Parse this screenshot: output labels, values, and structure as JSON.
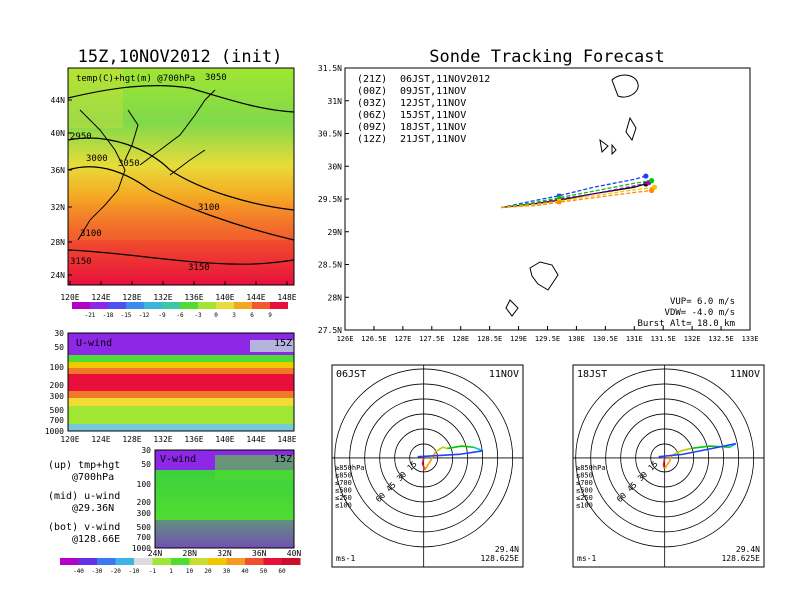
{
  "left": {
    "title": "15Z,10NOV2012 (init)",
    "map_label": "temp(C)+hgt(m) @700hPa",
    "map_lat_ticks": [
      "44N",
      "40N",
      "36N",
      "32N",
      "28N",
      "24N"
    ],
    "map_lon_ticks": [
      "120E",
      "124E",
      "128E",
      "132E",
      "136E",
      "140E",
      "144E",
      "148E"
    ],
    "contour_labels": [
      "3050",
      "2950",
      "3000",
      "3050",
      "3100",
      "3100",
      "3150",
      "3150"
    ],
    "temp_colorbar": [
      "-21",
      "-18",
      "-15",
      "-12",
      "-9",
      "-6",
      "-3",
      "0",
      "3",
      "6",
      "9"
    ],
    "u_panel": {
      "label": "U-wind",
      "time": "15Z",
      "p_ticks": [
        "30",
        "50",
        "100",
        "200",
        "300",
        "500",
        "700",
        "1000"
      ],
      "lon_ticks": [
        "120E",
        "124E",
        "128E",
        "132E",
        "136E",
        "140E",
        "144E",
        "148E"
      ]
    },
    "v_panel": {
      "label": "V-wind",
      "time": "15Z",
      "p_ticks": [
        "30",
        "50",
        "100",
        "200",
        "300",
        "500",
        "700",
        "1000"
      ],
      "lat_ticks": [
        "24N",
        "28N",
        "32N",
        "36N",
        "40N"
      ]
    },
    "notes": [
      {
        "line1": "(up) tmp+hgt",
        "line2": "@700hPa"
      },
      {
        "line1": "(mid) u-wind",
        "line2": "@29.36N"
      },
      {
        "line1": "(bot) v-wind",
        "line2": "@128.66E"
      }
    ],
    "wind_colorbar": [
      "-40",
      "-30",
      "-20",
      "-10",
      "-1",
      "1",
      "10",
      "20",
      "30",
      "40",
      "50",
      "60"
    ]
  },
  "right": {
    "title": "Sonde Tracking Forecast",
    "legend": [
      {
        "code": "(21Z)",
        "label": "06JST,11NOV2012",
        "color": "#000000"
      },
      {
        "code": "(00Z)",
        "label": "09JST,11NOV",
        "color": "#a000c8"
      },
      {
        "code": "(03Z)",
        "label": "12JST,11NOV",
        "color": "#1e3cff"
      },
      {
        "code": "(06Z)",
        "label": "15JST,11NOV",
        "color": "#00c800"
      },
      {
        "code": "(09Z)",
        "label": "18JST,11NOV",
        "color": "#f0c800"
      },
      {
        "code": "(12Z)",
        "label": "21JST,11NOV",
        "color": "#ff8c00"
      }
    ],
    "lat_ticks": [
      "31.5N",
      "31N",
      "30.5N",
      "30N",
      "29.5N",
      "29N",
      "28.5N",
      "28N",
      "27.5N"
    ],
    "lon_ticks": [
      "126E",
      "126.5E",
      "127E",
      "127.5E",
      "128E",
      "128.5E",
      "129E",
      "129.5E",
      "130E",
      "130.5E",
      "131E",
      "131.5E",
      "132E",
      "132.5E",
      "133E"
    ],
    "params": {
      "vup": "VUP= 6.0 m/s",
      "vdw": "VDW= -4.0 m/s",
      "burst": "Burst Alt= 18.0 km"
    }
  },
  "hodographs": [
    {
      "jst": "06JST",
      "date": "11NOV"
    },
    {
      "jst": "18JST",
      "date": "11NOV"
    }
  ],
  "hodo_common": {
    "ring_labels": [
      "15",
      "30",
      "45",
      "60"
    ],
    "levels": [
      {
        "label": "≥850hPa",
        "color": "#e02020"
      },
      {
        "label": "≤850",
        "color": "#ff9900"
      },
      {
        "label": "≤700",
        "color": "#c8c800"
      },
      {
        "label": "≤500",
        "color": "#00c800"
      },
      {
        "label": "≤250",
        "color": "#00c8c8"
      },
      {
        "label": "≤100",
        "color": "#2040ff"
      }
    ],
    "units": "ms-1",
    "lat": "29.4N",
    "lon": "128.625E"
  },
  "chart_data": [
    {
      "type": "line",
      "title": "Sonde Tracking Forecast",
      "xlabel": "",
      "ylabel": "",
      "xlim": [
        126,
        133
      ],
      "ylim": [
        27.5,
        31.5
      ],
      "series": [
        {
          "name": "06JST,11NOV2012",
          "color": "#000000",
          "x": [
            128.7,
            129.3,
            129.7,
            130.3,
            131.0,
            131.2
          ],
          "y": [
            29.37,
            29.43,
            29.48,
            29.58,
            29.68,
            29.73
          ]
        },
        {
          "name": "09JST,11NOV",
          "color": "#a000c8",
          "x": [
            128.7,
            129.3,
            129.7,
            130.3,
            131.0,
            131.25
          ],
          "y": [
            29.37,
            29.44,
            29.5,
            29.58,
            29.7,
            29.75
          ]
        },
        {
          "name": "12JST,11NOV",
          "color": "#1e3cff",
          "x": [
            128.7,
            129.3,
            129.7,
            130.3,
            131.0,
            131.2
          ],
          "y": [
            29.37,
            29.48,
            29.55,
            29.68,
            29.8,
            29.85
          ]
        },
        {
          "name": "15JST,11NOV",
          "color": "#00c800",
          "x": [
            128.7,
            129.3,
            129.7,
            130.3,
            131.0,
            131.3
          ],
          "y": [
            29.37,
            29.45,
            29.52,
            29.62,
            29.74,
            29.78
          ]
        },
        {
          "name": "18JST,11NOV",
          "color": "#f0c800",
          "x": [
            128.7,
            129.3,
            129.7,
            130.3,
            131.0,
            131.35
          ],
          "y": [
            29.37,
            29.42,
            29.47,
            29.55,
            29.64,
            29.68
          ]
        },
        {
          "name": "21JST,11NOV",
          "color": "#ff8c00",
          "x": [
            128.7,
            129.3,
            129.7,
            130.3,
            131.0,
            131.3
          ],
          "y": [
            29.37,
            29.4,
            29.45,
            29.52,
            29.6,
            29.63
          ]
        }
      ]
    },
    {
      "type": "line",
      "title": "06JST 11NOV",
      "xlabel": "",
      "ylabel": "",
      "xlim": [
        -75,
        75
      ],
      "ylim": [
        -75,
        75
      ],
      "series": [
        {
          "name": "≥850hPa",
          "color": "#e02020",
          "x": [
            0,
            -1,
            1
          ],
          "y": [
            0,
            -5,
            -10
          ]
        },
        {
          "name": "≤850",
          "color": "#ff9900",
          "x": [
            1,
            6,
            10
          ],
          "y": [
            -10,
            -2,
            5
          ]
        },
        {
          "name": "≤700",
          "color": "#c8c800",
          "x": [
            10,
            16,
            20
          ],
          "y": [
            5,
            9,
            8
          ]
        },
        {
          "name": "≤500",
          "color": "#00c800",
          "x": [
            20,
            32,
            42
          ],
          "y": [
            8,
            10,
            9
          ]
        },
        {
          "name": "≤250",
          "color": "#00c8c8",
          "x": [
            42,
            50
          ],
          "y": [
            9,
            6
          ]
        },
        {
          "name": "≤100",
          "color": "#2040ff",
          "x": [
            50,
            30,
            12,
            -5
          ],
          "y": [
            6,
            3,
            2,
            1
          ]
        }
      ]
    },
    {
      "type": "line",
      "title": "18JST 11NOV",
      "xlabel": "",
      "ylabel": "",
      "xlim": [
        -75,
        75
      ],
      "ylim": [
        -75,
        75
      ],
      "series": [
        {
          "name": "≥850hPa",
          "color": "#e02020",
          "x": [
            0,
            -1,
            0
          ],
          "y": [
            0,
            -6,
            -9
          ]
        },
        {
          "name": "≤850",
          "color": "#ff9900",
          "x": [
            0,
            4,
            6
          ],
          "y": [
            -9,
            -3,
            2
          ]
        },
        {
          "name": "≤700",
          "color": "#c8c800",
          "x": [
            6,
            14,
            22
          ],
          "y": [
            2,
            6,
            8
          ]
        },
        {
          "name": "≤500",
          "color": "#00c800",
          "x": [
            22,
            38,
            55
          ],
          "y": [
            8,
            10,
            9
          ]
        },
        {
          "name": "≤250",
          "color": "#00c8c8",
          "x": [
            55,
            60
          ],
          "y": [
            9,
            12
          ]
        },
        {
          "name": "≤100",
          "color": "#2040ff",
          "x": [
            60,
            35,
            15,
            -5
          ],
          "y": [
            12,
            7,
            3,
            1
          ]
        }
      ]
    }
  ]
}
